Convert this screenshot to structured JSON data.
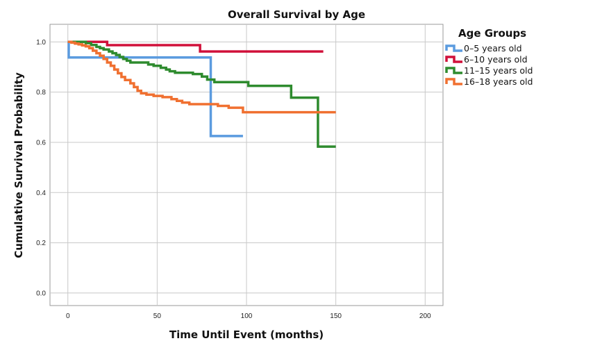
{
  "chart_data": {
    "type": "line",
    "title": "Overall Survival by Age",
    "xlabel": "Time Until Event (months)",
    "ylabel": "Cumulative Survival Probability",
    "xlim": [
      -10,
      210
    ],
    "ylim": [
      -0.05,
      1.07
    ],
    "x_ticks": [
      0,
      50,
      100,
      150,
      200
    ],
    "x_tick_labels": [
      "0",
      "50",
      "100",
      "150",
      "200"
    ],
    "y_ticks": [
      0.0,
      0.2,
      0.4,
      0.6,
      0.8,
      1.0
    ],
    "y_tick_labels": [
      "0.0",
      "0.2",
      "0.4",
      "0.6",
      "0.8",
      "1.0"
    ],
    "grid": true,
    "legend": {
      "title": "Age Groups",
      "position": "top-right"
    },
    "series": [
      {
        "name": "0–5 years old",
        "color": "#5b9bdf",
        "steps": [
          [
            0,
            1.0
          ],
          [
            0.5,
            0.938
          ],
          [
            80,
            0.625
          ],
          [
            98,
            0.625
          ]
        ]
      },
      {
        "name": "6–10 years old",
        "color": "#d0103a",
        "steps": [
          [
            0,
            1.0
          ],
          [
            22,
            0.987
          ],
          [
            74,
            0.962
          ],
          [
            143,
            0.962
          ]
        ]
      },
      {
        "name": "11–15 years old",
        "color": "#2e8b2e",
        "steps": [
          [
            0,
            1.0
          ],
          [
            10,
            0.995
          ],
          [
            13,
            0.988
          ],
          [
            16,
            0.98
          ],
          [
            18,
            0.975
          ],
          [
            20,
            0.97
          ],
          [
            23,
            0.962
          ],
          [
            25,
            0.955
          ],
          [
            27,
            0.948
          ],
          [
            29,
            0.94
          ],
          [
            31,
            0.932
          ],
          [
            33,
            0.925
          ],
          [
            35,
            0.918
          ],
          [
            45,
            0.91
          ],
          [
            48,
            0.905
          ],
          [
            52,
            0.897
          ],
          [
            55,
            0.89
          ],
          [
            57,
            0.883
          ],
          [
            60,
            0.877
          ],
          [
            70,
            0.872
          ],
          [
            75,
            0.862
          ],
          [
            78,
            0.85
          ],
          [
            82,
            0.84
          ],
          [
            101,
            0.825
          ],
          [
            125,
            0.778
          ],
          [
            140,
            0.583
          ],
          [
            150,
            0.583
          ]
        ]
      },
      {
        "name": "16–18 years old",
        "color": "#f07030",
        "steps": [
          [
            0,
            1.0
          ],
          [
            2,
            0.997
          ],
          [
            4,
            0.993
          ],
          [
            6,
            0.99
          ],
          [
            8,
            0.986
          ],
          [
            10,
            0.982
          ],
          [
            12,
            0.975
          ],
          [
            14,
            0.965
          ],
          [
            16,
            0.955
          ],
          [
            18,
            0.945
          ],
          [
            20,
            0.932
          ],
          [
            22,
            0.918
          ],
          [
            24,
            0.905
          ],
          [
            26,
            0.89
          ],
          [
            28,
            0.875
          ],
          [
            30,
            0.86
          ],
          [
            32,
            0.848
          ],
          [
            35,
            0.835
          ],
          [
            37,
            0.82
          ],
          [
            39,
            0.805
          ],
          [
            41,
            0.795
          ],
          [
            44,
            0.79
          ],
          [
            48,
            0.785
          ],
          [
            53,
            0.78
          ],
          [
            58,
            0.772
          ],
          [
            61,
            0.765
          ],
          [
            64,
            0.758
          ],
          [
            68,
            0.752
          ],
          [
            84,
            0.745
          ],
          [
            90,
            0.738
          ],
          [
            98,
            0.72
          ],
          [
            150,
            0.72
          ]
        ]
      }
    ]
  }
}
